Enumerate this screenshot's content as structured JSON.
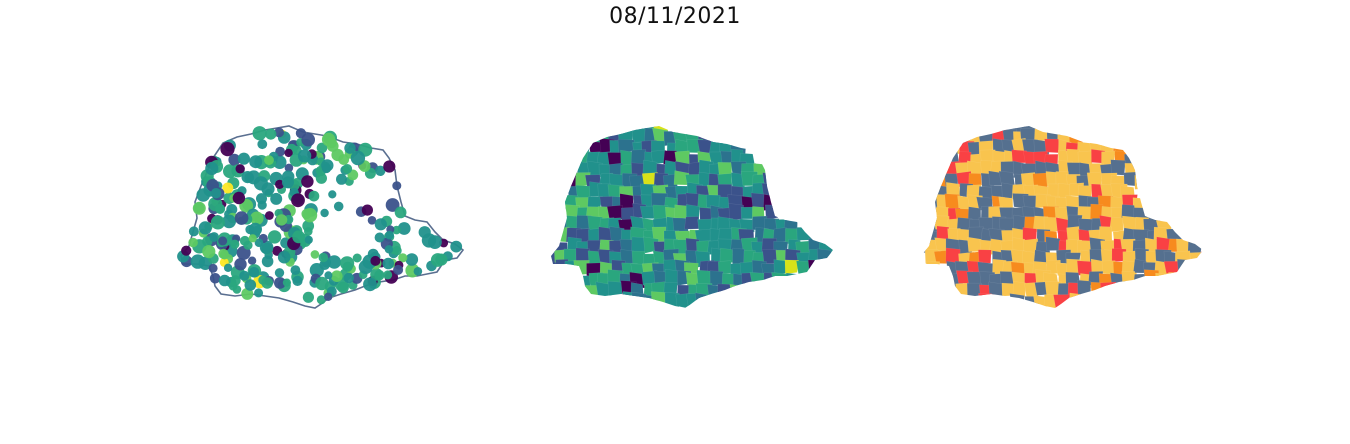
{
  "figure": {
    "title": "08/11/2021"
  },
  "panels": [
    {
      "kind": "point-map",
      "outline_color": "#5a6f90",
      "palette": [
        "#440154",
        "#3b528b",
        "#21918c",
        "#2aa67e",
        "#5ec962",
        "#fde725"
      ],
      "palette_weights": [
        6,
        14,
        36,
        28,
        14,
        2
      ]
    },
    {
      "kind": "choropleth",
      "palette": [
        "#440154",
        "#3b528b",
        "#2c728e",
        "#21918c",
        "#2aa67e",
        "#5ec962",
        "#d8e219"
      ],
      "palette_weights": [
        6,
        16,
        16,
        30,
        16,
        14,
        2
      ]
    },
    {
      "kind": "category-map",
      "palette": [
        "#55708f",
        "#f9c44e",
        "#f94144",
        "#f78b1e"
      ],
      "palette_weights": [
        38,
        42,
        14,
        6
      ]
    }
  ]
}
